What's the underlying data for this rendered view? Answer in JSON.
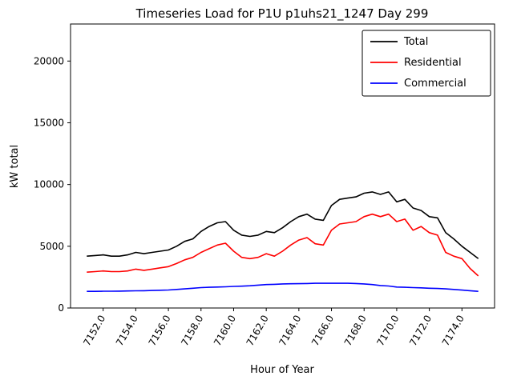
{
  "chart_data": {
    "type": "line",
    "title": "Timeseries Load for P1U p1uhs21_1247  Day 299",
    "xlabel": "Hour of Year",
    "ylabel": "kW total",
    "xlim": [
      7150,
      7176
    ],
    "ylim": [
      0,
      23000
    ],
    "xticks": [
      7152,
      7154,
      7156,
      7158,
      7160,
      7162,
      7164,
      7166,
      7168,
      7170,
      7172,
      7174
    ],
    "xtick_labels": [
      "7152.0",
      "7154.0",
      "7156.0",
      "7158.0",
      "7160.0",
      "7162.0",
      "7164.0",
      "7166.0",
      "7168.0",
      "7170.0",
      "7172.0",
      "7174.0"
    ],
    "yticks": [
      0,
      5000,
      10000,
      15000,
      20000
    ],
    "ytick_labels": [
      "0",
      "5000",
      "10000",
      "15000",
      "20000"
    ],
    "grid": false,
    "legend_position": "upper right",
    "x": [
      7151.0,
      7151.5,
      7152.0,
      7152.5,
      7153.0,
      7153.5,
      7154.0,
      7154.5,
      7155.0,
      7155.5,
      7156.0,
      7156.5,
      7157.0,
      7157.5,
      7158.0,
      7158.5,
      7159.0,
      7159.5,
      7160.0,
      7160.5,
      7161.0,
      7161.5,
      7162.0,
      7162.5,
      7163.0,
      7163.5,
      7164.0,
      7164.5,
      7165.0,
      7165.5,
      7166.0,
      7166.5,
      7167.0,
      7167.5,
      7168.0,
      7168.5,
      7169.0,
      7169.5,
      7170.0,
      7170.5,
      7171.0,
      7171.5,
      7172.0,
      7172.5,
      7173.0,
      7173.5,
      7174.0,
      7174.5,
      7175.0
    ],
    "series": [
      {
        "name": "Total",
        "color": "#000000",
        "values": [
          4200,
          4250,
          4300,
          4200,
          4200,
          4300,
          4500,
          4400,
          4500,
          4600,
          4700,
          5000,
          5400,
          5600,
          6200,
          6600,
          6900,
          7000,
          6300,
          5900,
          5800,
          5900,
          6200,
          6100,
          6500,
          7000,
          7400,
          7600,
          7200,
          7100,
          8300,
          8800,
          8900,
          9000,
          9300,
          9400,
          9200,
          9400,
          8600,
          8800,
          8100,
          7900,
          7400,
          7300,
          6100,
          5600,
          5000,
          4500,
          4000
        ]
      },
      {
        "name": "Residential",
        "color": "#ff0000",
        "values": [
          2900,
          2950,
          3000,
          2950,
          2950,
          3000,
          3150,
          3050,
          3150,
          3250,
          3350,
          3600,
          3900,
          4100,
          4500,
          4800,
          5100,
          5250,
          4600,
          4100,
          4000,
          4100,
          4400,
          4200,
          4600,
          5100,
          5500,
          5700,
          5200,
          5100,
          6300,
          6800,
          6900,
          7000,
          7400,
          7600,
          7400,
          7600,
          7000,
          7200,
          6300,
          6600,
          6100,
          5900,
          4500,
          4200,
          4000,
          3200,
          2600
        ]
      },
      {
        "name": "Commercial",
        "color": "#0000ff",
        "values": [
          1350,
          1350,
          1360,
          1360,
          1370,
          1380,
          1390,
          1400,
          1420,
          1440,
          1460,
          1500,
          1550,
          1600,
          1650,
          1680,
          1700,
          1720,
          1750,
          1770,
          1800,
          1850,
          1900,
          1920,
          1950,
          1960,
          1970,
          1980,
          2000,
          2000,
          2000,
          2000,
          2000,
          1980,
          1950,
          1900,
          1820,
          1780,
          1700,
          1680,
          1650,
          1630,
          1600,
          1580,
          1550,
          1500,
          1450,
          1400,
          1350
        ]
      }
    ]
  }
}
